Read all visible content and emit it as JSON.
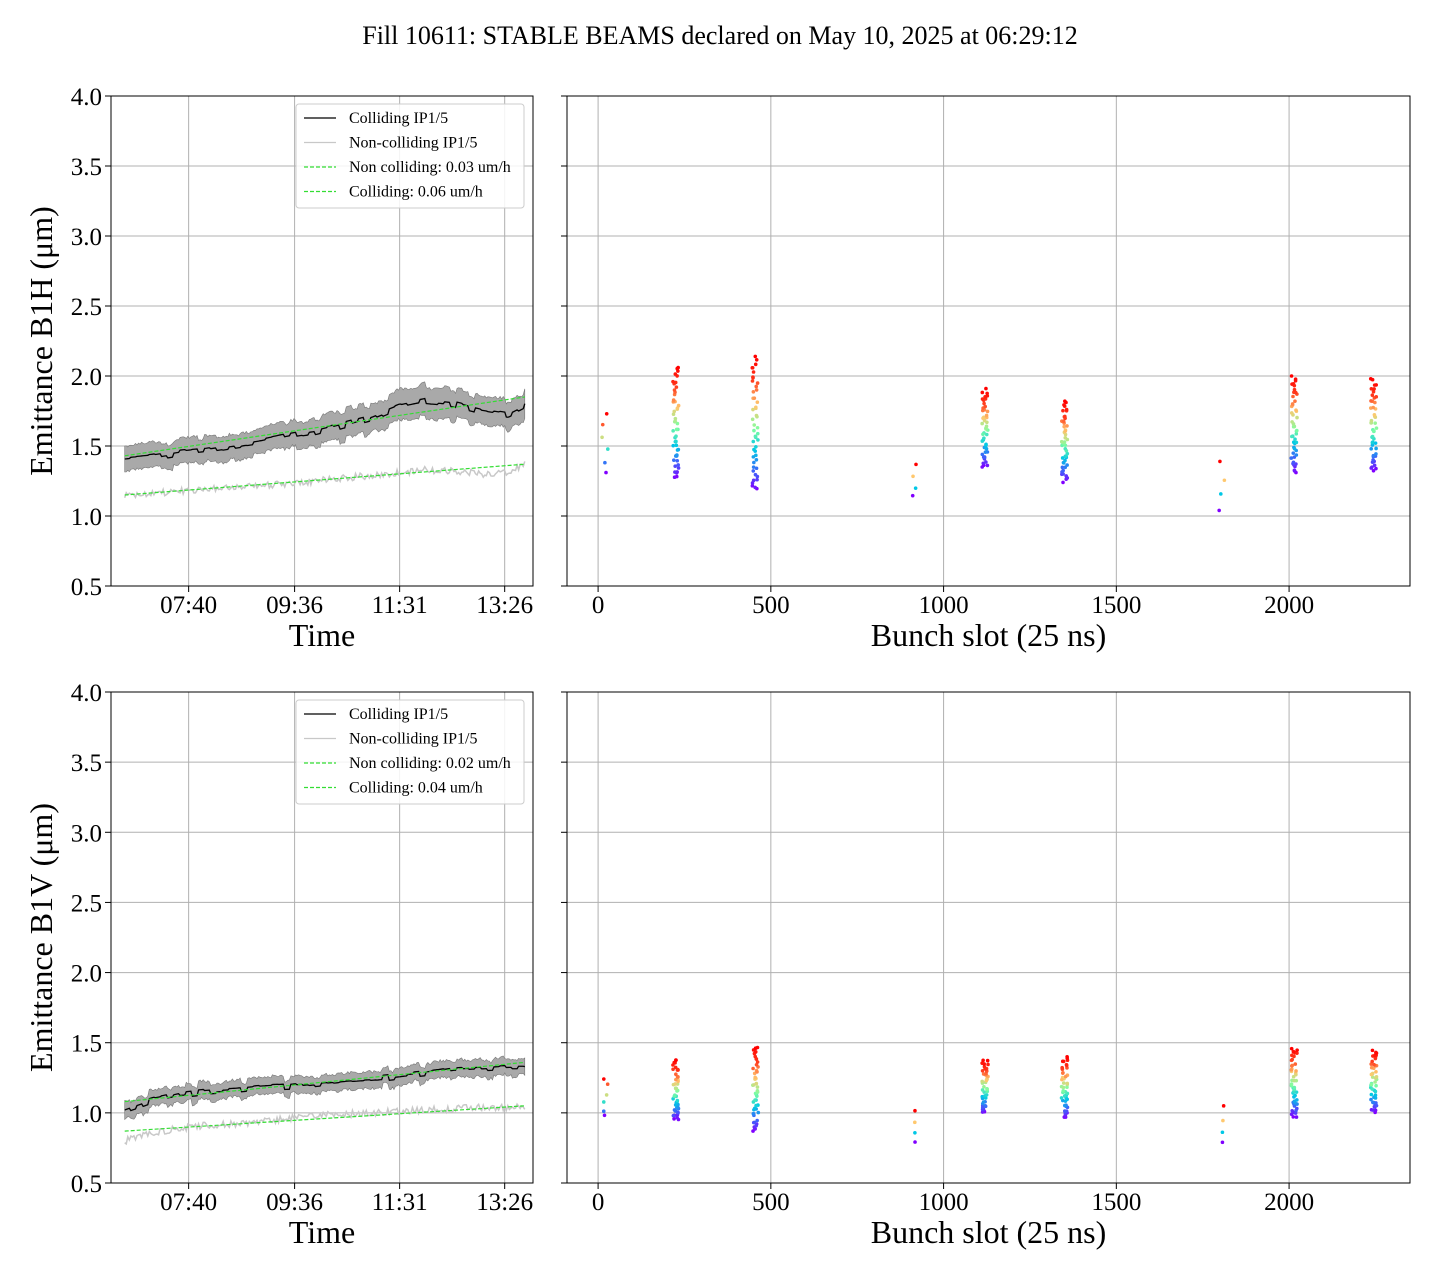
{
  "figure": {
    "title": "Fill 10611: STABLE BEAMS declared on May 10, 2025 at 06:29:12"
  },
  "colors": {
    "colliding": "#000000",
    "non_colliding": "#c8c8c8",
    "band": "#a9a9a9",
    "fit": "#33dd33",
    "grid": "#b0b0b0"
  },
  "chart_data": [
    {
      "type": "line",
      "panel": "B1H time evolution",
      "xlabel": "Time",
      "ylabel": "Emittance B1H (μm)",
      "xticks": [
        "07:40",
        "09:36",
        "11:31",
        "13:26"
      ],
      "ylim": [
        0.5,
        4.0
      ],
      "yticks": [
        "0.5",
        "1.0",
        "1.5",
        "2.0",
        "2.5",
        "3.0",
        "3.5",
        "4.0"
      ],
      "grid": true,
      "legend_position": "top-right",
      "legend": [
        "Colliding IP1/5",
        "Non-colliding IP1/5",
        "Non colliding: 0.03 um/h",
        "Colliding: 0.06 um/h"
      ],
      "time_hours": [
        6.5,
        7.0,
        7.5,
        8.0,
        8.5,
        9.0,
        9.5,
        10.0,
        10.5,
        11.0,
        11.5,
        12.0,
        12.5,
        13.0,
        13.5,
        13.8
      ],
      "series": [
        {
          "name": "Colliding IP1/5",
          "values": [
            1.4,
            1.42,
            1.45,
            1.47,
            1.5,
            1.53,
            1.57,
            1.6,
            1.65,
            1.7,
            1.78,
            1.82,
            1.8,
            1.75,
            1.72,
            1.78
          ],
          "band": [
            0.09,
            0.09,
            0.09,
            0.09,
            0.09,
            0.09,
            0.09,
            0.1,
            0.1,
            0.1,
            0.11,
            0.11,
            0.11,
            0.1,
            0.1,
            0.1
          ]
        },
        {
          "name": "Non-colliding IP1/5",
          "values": [
            1.14,
            1.16,
            1.18,
            1.19,
            1.21,
            1.22,
            1.23,
            1.25,
            1.27,
            1.29,
            1.31,
            1.33,
            1.32,
            1.3,
            1.31,
            1.37
          ]
        },
        {
          "name": "Non colliding: 0.03 um/h",
          "fit": [
            [
              6.5,
              1.15
            ],
            [
              13.8,
              1.37
            ]
          ]
        },
        {
          "name": "Colliding: 0.06 um/h",
          "fit": [
            [
              6.5,
              1.43
            ],
            [
              13.8,
              1.85
            ]
          ]
        }
      ]
    },
    {
      "type": "scatter",
      "panel": "B1H bunch-by-bunch",
      "xlabel": "Bunch slot (25 ns)",
      "xlim": [
        -90,
        2350
      ],
      "xticks": [
        "0",
        "500",
        "1000",
        "1500",
        "2000"
      ],
      "ylim": [
        0.5,
        4.0
      ],
      "grid": true,
      "trains": [
        {
          "slot": 20,
          "n": 6,
          "min": 1.31,
          "max": 1.73
        },
        {
          "slot": 225,
          "n": 48,
          "min": 1.27,
          "max": 2.06
        },
        {
          "slot": 455,
          "n": 48,
          "min": 1.19,
          "max": 2.14
        },
        {
          "slot": 915,
          "n": 4,
          "min": 1.14,
          "max": 1.38
        },
        {
          "slot": 1120,
          "n": 48,
          "min": 1.35,
          "max": 1.91
        },
        {
          "slot": 1350,
          "n": 48,
          "min": 1.24,
          "max": 1.82
        },
        {
          "slot": 1805,
          "n": 4,
          "min": 1.04,
          "max": 1.39
        },
        {
          "slot": 2015,
          "n": 48,
          "min": 1.31,
          "max": 2.0
        },
        {
          "slot": 2245,
          "n": 48,
          "min": 1.32,
          "max": 1.98
        }
      ]
    },
    {
      "type": "line",
      "panel": "B1V time evolution",
      "xlabel": "Time",
      "ylabel": "Emittance B1V (μm)",
      "xticks": [
        "07:40",
        "09:36",
        "11:31",
        "13:26"
      ],
      "ylim": [
        0.5,
        4.0
      ],
      "yticks": [
        "0.5",
        "1.0",
        "1.5",
        "2.0",
        "2.5",
        "3.0",
        "3.5",
        "4.0"
      ],
      "grid": true,
      "legend_position": "top-right",
      "legend": [
        "Colliding IP1/5",
        "Non-colliding IP1/5",
        "Non colliding: 0.02 um/h",
        "Colliding: 0.04 um/h"
      ],
      "time_hours": [
        6.5,
        7.0,
        7.5,
        8.0,
        8.5,
        9.0,
        9.5,
        10.0,
        10.5,
        11.0,
        11.5,
        12.0,
        12.5,
        13.0,
        13.5,
        13.8
      ],
      "series": [
        {
          "name": "Colliding IP1/5",
          "values": [
            1.02,
            1.09,
            1.13,
            1.15,
            1.16,
            1.18,
            1.19,
            1.21,
            1.23,
            1.24,
            1.26,
            1.28,
            1.31,
            1.32,
            1.33,
            1.33
          ],
          "band": [
            0.06,
            0.06,
            0.06,
            0.06,
            0.06,
            0.06,
            0.06,
            0.06,
            0.06,
            0.06,
            0.06,
            0.06,
            0.06,
            0.06,
            0.06,
            0.06
          ]
        },
        {
          "name": "Non-colliding IP1/5",
          "values": [
            0.8,
            0.86,
            0.89,
            0.91,
            0.92,
            0.94,
            0.96,
            0.98,
            0.99,
            1.0,
            1.01,
            1.02,
            1.03,
            1.04,
            1.04,
            1.05
          ]
        },
        {
          "name": "Non colliding: 0.02 um/h",
          "fit": [
            [
              6.5,
              0.87
            ],
            [
              13.8,
              1.05
            ]
          ]
        },
        {
          "name": "Colliding: 0.04 um/h",
          "fit": [
            [
              6.5,
              1.08
            ],
            [
              13.8,
              1.36
            ]
          ]
        }
      ]
    },
    {
      "type": "scatter",
      "panel": "B1V bunch-by-bunch",
      "xlabel": "Bunch slot (25 ns)",
      "xlim": [
        -90,
        2350
      ],
      "xticks": [
        "0",
        "500",
        "1000",
        "1500",
        "2000"
      ],
      "ylim": [
        0.5,
        4.0
      ],
      "grid": true,
      "trains": [
        {
          "slot": 20,
          "n": 6,
          "min": 0.98,
          "max": 1.25
        },
        {
          "slot": 225,
          "n": 48,
          "min": 0.95,
          "max": 1.38
        },
        {
          "slot": 455,
          "n": 48,
          "min": 0.87,
          "max": 1.47
        },
        {
          "slot": 915,
          "n": 4,
          "min": 0.79,
          "max": 1.03
        },
        {
          "slot": 1120,
          "n": 48,
          "min": 1.0,
          "max": 1.38
        },
        {
          "slot": 1350,
          "n": 48,
          "min": 0.97,
          "max": 1.4
        },
        {
          "slot": 1805,
          "n": 4,
          "min": 0.79,
          "max": 1.05
        },
        {
          "slot": 2015,
          "n": 48,
          "min": 0.97,
          "max": 1.47
        },
        {
          "slot": 2245,
          "n": 48,
          "min": 1.0,
          "max": 1.45
        }
      ]
    }
  ]
}
